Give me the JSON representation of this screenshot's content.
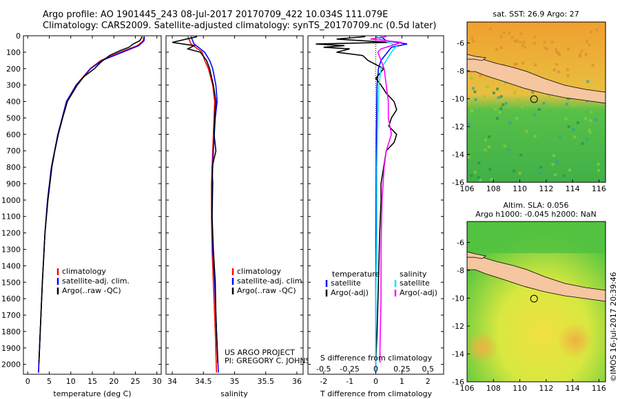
{
  "header": {
    "line1": "Argo profile: AO 1901445_243 08-Jul-2017 20170709_422 10.034S 111.079E",
    "line2": "Climatology: CARS2009. Satellite-adjusted climatology: synTS_20170709.nc (0.5d later)"
  },
  "colors": {
    "climatology": "#ff0000",
    "satellite": "#0000ff",
    "argo": "#000000",
    "satellite_salinity": "#00e5ff",
    "argo_salinity": "#ff00ff",
    "land": "#f5c6a0"
  },
  "depth_axis": {
    "ylim": [
      2060,
      0
    ],
    "ticks": [
      0,
      100,
      200,
      300,
      400,
      500,
      600,
      700,
      800,
      900,
      1000,
      1100,
      1200,
      1300,
      1400,
      1500,
      1600,
      1700,
      1800,
      1900,
      2000
    ]
  },
  "chart_data": [
    {
      "type": "line",
      "xlabel": "temperature (deg C)",
      "xlim": [
        -1,
        31
      ],
      "xticks": [
        0,
        5,
        10,
        15,
        20,
        25,
        30
      ],
      "legend": [
        "climatology",
        "satellite-adj. clim.",
        "Argo(..raw -QC)"
      ],
      "series": [
        {
          "name": "climatology",
          "depth": [
            5,
            30,
            60,
            100,
            150,
            200,
            300,
            400,
            500,
            600,
            800,
            1000,
            1200,
            1500,
            1800,
            2050
          ],
          "values": [
            27.0,
            26.8,
            25.5,
            21.5,
            17.0,
            14.5,
            11.2,
            9.0,
            8.0,
            7.0,
            5.5,
            4.6,
            4.0,
            3.4,
            2.9,
            2.5
          ]
        },
        {
          "name": "satellite-adj. clim.",
          "depth": [
            5,
            30,
            60,
            100,
            150,
            200,
            300,
            400,
            500,
            600,
            800,
            1000,
            1200,
            1500,
            1800,
            2050
          ],
          "values": [
            27.1,
            27.0,
            25.8,
            22.0,
            17.3,
            14.6,
            11.3,
            9.0,
            8.0,
            7.0,
            5.5,
            4.6,
            4.0,
            3.4,
            2.9,
            2.5
          ]
        },
        {
          "name": "Argo(..raw -QC)",
          "depth": [
            5,
            30,
            50,
            70,
            90,
            120,
            160,
            200,
            250,
            300,
            400,
            500,
            600,
            700,
            800,
            1000,
            1200,
            1500,
            1800,
            1990
          ],
          "values": [
            26.6,
            26.0,
            24.5,
            23.5,
            21.5,
            19.0,
            17.0,
            15.5,
            13.0,
            11.5,
            9.2,
            8.1,
            7.1,
            6.3,
            5.6,
            4.7,
            4.0,
            3.4,
            2.9,
            2.6
          ]
        }
      ]
    },
    {
      "type": "line",
      "xlabel": "salinity",
      "xlim": [
        33.9,
        36.1
      ],
      "xticks": [
        34,
        34.5,
        35,
        35.5,
        36
      ],
      "legend": [
        "climatology",
        "satellite-adj. clim.",
        "Argo(..raw -QC)"
      ],
      "series": [
        {
          "name": "climatology",
          "depth": [
            5,
            50,
            100,
            150,
            200,
            300,
            400,
            500,
            700,
            900,
            1100,
            1300,
            1500,
            1800,
            2050
          ],
          "values": [
            34.25,
            34.3,
            34.48,
            34.52,
            34.58,
            34.65,
            34.68,
            34.67,
            34.65,
            34.63,
            34.63,
            34.64,
            34.66,
            34.69,
            34.71
          ]
        },
        {
          "name": "satellite-adj. clim.",
          "depth": [
            5,
            50,
            100,
            150,
            200,
            300,
            400,
            500,
            700,
            900,
            1100,
            1300,
            1500,
            1800,
            2050
          ],
          "values": [
            34.3,
            34.35,
            34.52,
            34.6,
            34.65,
            34.7,
            34.72,
            34.69,
            34.66,
            34.64,
            34.64,
            34.65,
            34.68,
            34.71,
            34.74
          ]
        },
        {
          "name": "Argo(..raw -QC)",
          "depth": [
            5,
            40,
            60,
            80,
            100,
            150,
            200,
            300,
            400,
            500,
            600,
            700,
            800,
            900,
            1100,
            1300,
            1500,
            1700,
            1900,
            1990
          ],
          "values": [
            34.4,
            34.0,
            34.35,
            34.25,
            34.45,
            34.55,
            34.6,
            34.66,
            34.7,
            34.68,
            34.67,
            34.7,
            34.64,
            34.65,
            34.64,
            34.66,
            34.69,
            34.7,
            34.72,
            34.73
          ]
        }
      ],
      "annotations": [
        "US ARGO PROJECT",
        "PI: GREGORY C. JOHNSON"
      ]
    },
    {
      "type": "line",
      "xlabel": "T difference from climatology",
      "top_label": "S difference from climatology",
      "xlim": [
        -2.6,
        2.6
      ],
      "xticks": [
        -2,
        -1,
        0,
        1,
        2
      ],
      "sticks": [
        -0.5,
        -0.25,
        0,
        0.25,
        0.5
      ],
      "legend_titles": [
        "temperature",
        "salinity"
      ],
      "legend": [
        "satellite",
        "Argo(-adj)",
        "satellite",
        "Argo(-adj)"
      ],
      "series": [
        {
          "name": "satellite",
          "depth": [
            5,
            30,
            50,
            70,
            90,
            110,
            150,
            200,
            300,
            600,
            1000,
            1500,
            2050
          ],
          "values": [
            0.2,
            0.4,
            1.2,
            0.6,
            0.5,
            0.4,
            0.2,
            0.1,
            0.05,
            0.02,
            0.01,
            0.0,
            0.0
          ]
        },
        {
          "name": "Argo(-adj)",
          "depth": [
            5,
            20,
            40,
            50,
            60,
            70,
            80,
            100,
            120,
            150,
            200,
            260,
            300,
            350,
            400,
            450,
            500,
            550,
            600,
            650,
            700,
            800,
            900,
            1000,
            1200,
            1500,
            1800,
            1990
          ],
          "values": [
            -0.4,
            -1.5,
            0.5,
            -2.3,
            -1.2,
            -2.0,
            -1.0,
            -1.5,
            -0.5,
            -0.3,
            0.3,
            0.0,
            0.2,
            0.4,
            0.7,
            0.8,
            0.6,
            0.5,
            0.8,
            0.7,
            0.4,
            0.3,
            0.2,
            0.2,
            0.15,
            0.1,
            0.05,
            0.0
          ]
        },
        {
          "name": "satellite",
          "depth": [
            5,
            30,
            60,
            100,
            150,
            200,
            300,
            500,
            800,
            1200,
            1600,
            2050
          ],
          "values": [
            0.0,
            0.08,
            0.2,
            0.15,
            0.1,
            0.05,
            0.03,
            0.02,
            0.01,
            0.01,
            0.0,
            0.0
          ]
        },
        {
          "name": "Argo(-adj)",
          "depth": [
            5,
            20,
            40,
            60,
            80,
            100,
            150,
            200,
            300,
            400,
            500,
            600,
            700,
            800,
            1000,
            1300,
            1600,
            1900,
            1990
          ],
          "values": [
            0.1,
            -0.05,
            0.25,
            0.15,
            0.05,
            0.02,
            0.05,
            0.08,
            0.1,
            0.12,
            0.12,
            0.15,
            0.1,
            0.08,
            0.06,
            0.05,
            0.05,
            0.04,
            0.04
          ]
        }
      ]
    },
    {
      "type": "heatmap",
      "title": "sat. SST: 26.9 Argo: 27",
      "xlim": [
        106,
        116.5
      ],
      "ylim": [
        -16,
        -4.5
      ],
      "xticks": [
        106,
        108,
        110,
        112,
        114,
        116
      ],
      "yticks": [
        -6,
        -8,
        -10,
        -12,
        -14,
        -16
      ],
      "marker": {
        "lon": 111.079,
        "lat": -10.034
      }
    },
    {
      "type": "heatmap",
      "title_line1": "Altim. SLA: 0.056",
      "title_line2": "Argo h1000: -0.045 h2000: NaN",
      "xlim": [
        106,
        116.5
      ],
      "ylim": [
        -16,
        -4.5
      ],
      "xticks": [
        106,
        108,
        110,
        112,
        114,
        116
      ],
      "yticks": [
        -6,
        -8,
        -10,
        -12,
        -14,
        -16
      ],
      "marker": {
        "lon": 111.079,
        "lat": -10.034
      }
    }
  ],
  "footer": {
    "stamp": "©IMOS 16-Jul-2017 20:39:46"
  }
}
